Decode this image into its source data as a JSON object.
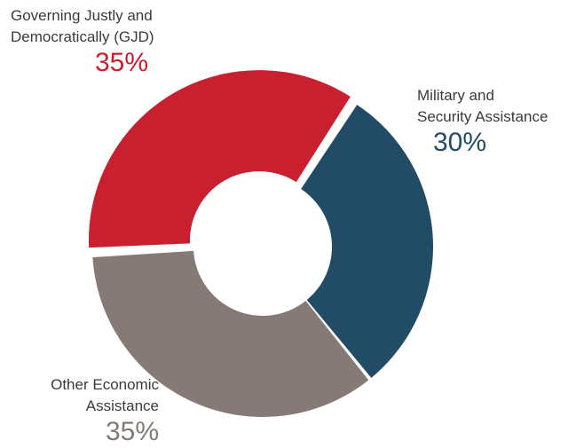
{
  "chart_data": {
    "type": "pie",
    "title": "",
    "donut": true,
    "categories": [
      "Governing Justly and Democratically (GJD)",
      "Military and Security Assistance",
      "Other Economic Assistance"
    ],
    "values": [
      35,
      30,
      35
    ],
    "colors": [
      "#c8202f",
      "#224c66",
      "#857a76"
    ],
    "labels": [
      {
        "line1": "Governing Justly and",
        "line2": "Democratically (GJD)",
        "pct": "35%",
        "color": "#c8202f"
      },
      {
        "line1": "Military and",
        "line2": "Security Assistance",
        "pct": "30%",
        "color": "#224c66"
      },
      {
        "line1": "Other Economic",
        "line2": "Assistance",
        "pct": "35%",
        "color": "#857a76"
      }
    ],
    "exploded_slice": "Governing Justly and Democratically (GJD)"
  }
}
